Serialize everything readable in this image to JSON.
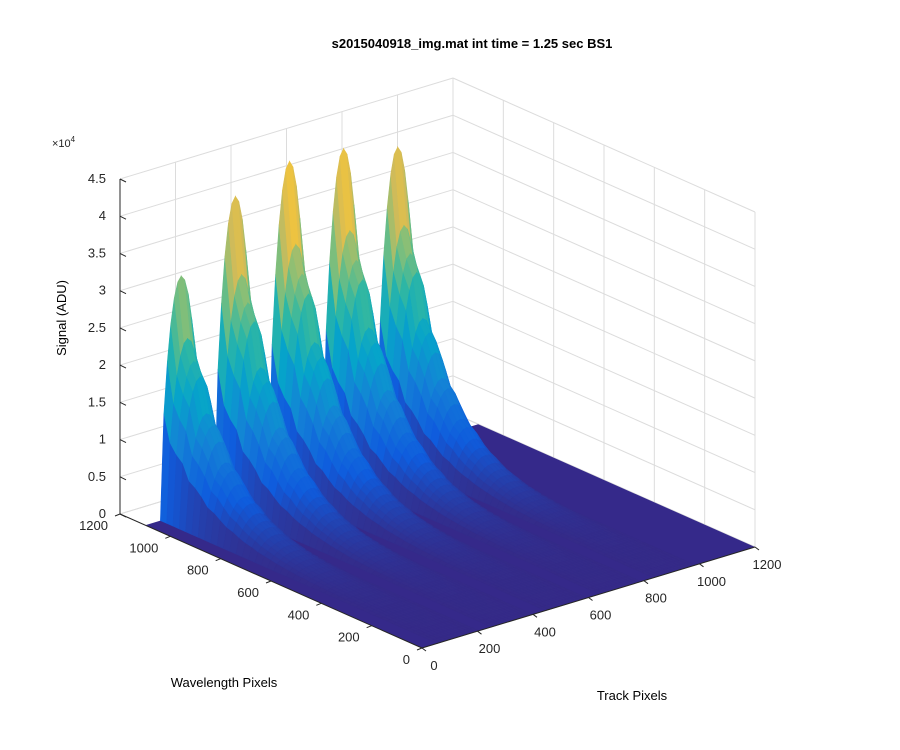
{
  "chart_data": {
    "type": "surface",
    "title": "s2015040918_img.mat int time = 1.25 sec   BS1",
    "xlabel": "Track Pixels",
    "ylabel": "Wavelength Pixels",
    "zlabel": "Signal (ADU)",
    "z_multiplier": "×10",
    "z_multiplier_exp": "4",
    "xlim": [
      0,
      1200
    ],
    "ylim": [
      0,
      1200
    ],
    "zlim": [
      0,
      45000
    ],
    "x_ticks": [
      "0",
      "200",
      "400",
      "600",
      "800",
      "1000",
      "1200"
    ],
    "y_ticks": [
      "0",
      "200",
      "400",
      "600",
      "800",
      "1000",
      "1200"
    ],
    "z_ticks": [
      "0",
      "0.5",
      "1",
      "1.5",
      "2",
      "2.5",
      "3",
      "3.5",
      "4",
      "4.5"
    ],
    "grid": true,
    "colormap": "parula",
    "colors": {
      "parula": [
        "#352a87",
        "#0f5cdd",
        "#1481d6",
        "#06a4ca",
        "#2eb7a4",
        "#87bf77",
        "#d1bb59",
        "#fec832",
        "#f9fb0e"
      ]
    },
    "peaks": [
      {
        "track_center": 130,
        "peak_signal": 32000
      },
      {
        "track_center": 325,
        "peak_signal": 40500
      },
      {
        "track_center": 520,
        "peak_signal": 43000
      },
      {
        "track_center": 715,
        "peak_signal": 42500
      },
      {
        "track_center": 910,
        "peak_signal": 40500
      }
    ],
    "peak_half_width": 75,
    "wavelength_start": 1100,
    "falloff_per_pixel": 0.0062
  }
}
